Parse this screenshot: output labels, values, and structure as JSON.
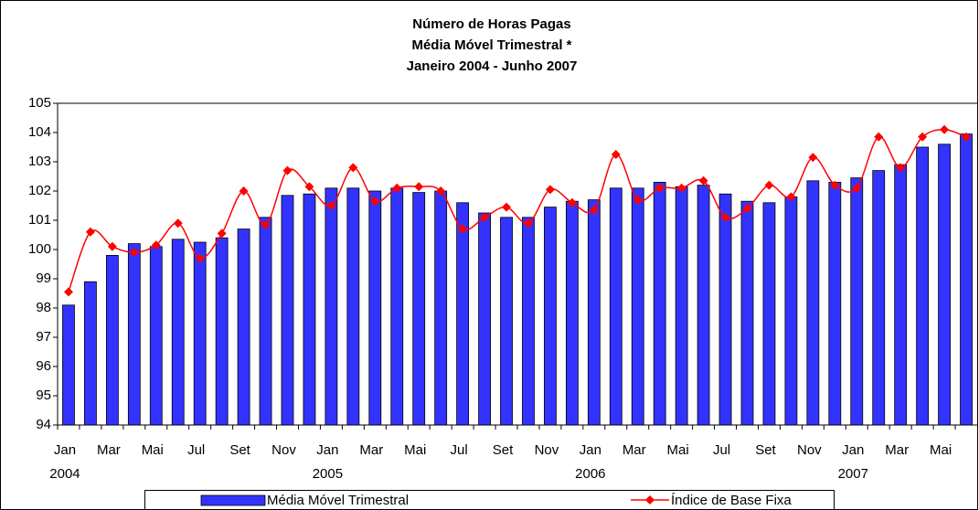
{
  "chart_data": {
    "type": "bar_line",
    "title": [
      "Número de Horas Pagas",
      "Média Móvel Trimestral *",
      "Janeiro 2004 - Junho 2007"
    ],
    "categories": [
      "Jan",
      null,
      "Mar",
      null,
      "Mai",
      null,
      "Jul",
      null,
      "Set",
      null,
      "Nov",
      null,
      "Jan",
      null,
      "Mar",
      null,
      "Mai",
      null,
      "Jul",
      null,
      "Set",
      null,
      "Nov",
      null,
      "Jan",
      null,
      "Mar",
      null,
      "Mai",
      null,
      "Jul",
      null,
      "Set",
      null,
      "Nov",
      null,
      "Jan",
      null,
      "Mar",
      null,
      "Mai",
      null
    ],
    "category_years": [
      "2004",
      null,
      null,
      null,
      null,
      null,
      null,
      null,
      null,
      null,
      null,
      null,
      "2005",
      null,
      null,
      null,
      null,
      null,
      null,
      null,
      null,
      null,
      null,
      null,
      "2006",
      null,
      null,
      null,
      null,
      null,
      null,
      null,
      null,
      null,
      null,
      null,
      "2007",
      null,
      null,
      null,
      null,
      null
    ],
    "series": [
      {
        "name": "Média Móvel Trimestral",
        "type": "bar",
        "color": "#3333ff",
        "values": [
          98.1,
          98.9,
          99.8,
          100.2,
          100.1,
          100.35,
          100.25,
          100.4,
          100.7,
          101.1,
          101.85,
          101.9,
          102.1,
          102.1,
          102.0,
          102.1,
          101.95,
          102.0,
          101.6,
          101.25,
          101.1,
          101.1,
          101.45,
          101.65,
          101.7,
          102.1,
          102.1,
          102.3,
          102.15,
          102.2,
          101.9,
          101.65,
          101.6,
          101.8,
          102.35,
          102.3,
          102.45,
          102.7,
          102.9,
          103.5,
          103.6,
          103.95
        ]
      },
      {
        "name": "Índice de Base Fixa",
        "type": "line",
        "color": "#ff0000",
        "values": [
          98.55,
          100.6,
          100.1,
          99.9,
          100.15,
          100.9,
          99.7,
          100.55,
          102.0,
          100.85,
          102.7,
          102.15,
          101.5,
          102.8,
          101.65,
          102.1,
          102.15,
          102.0,
          100.7,
          101.1,
          101.45,
          100.9,
          102.05,
          101.6,
          101.35,
          103.25,
          101.7,
          102.1,
          102.1,
          102.35,
          101.1,
          101.4,
          102.2,
          101.8,
          103.15,
          102.2,
          102.1,
          103.85,
          102.8,
          103.85,
          104.1,
          103.85
        ]
      }
    ],
    "ylim": [
      94,
      105
    ],
    "yticks": [
      94,
      95,
      96,
      97,
      98,
      99,
      100,
      101,
      102,
      103,
      104,
      105
    ],
    "grid": false,
    "legend": "bottom"
  }
}
